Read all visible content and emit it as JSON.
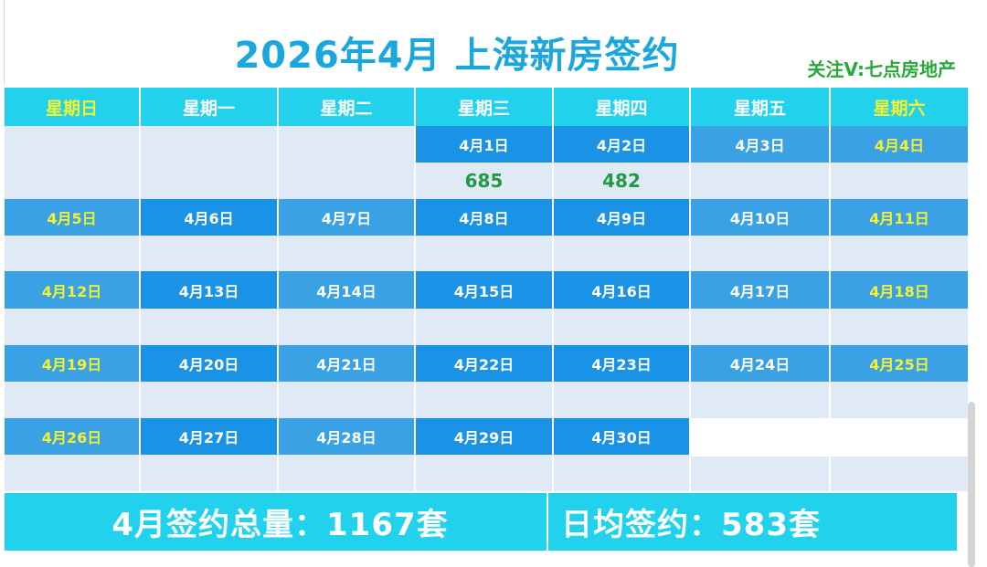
{
  "title": "2026年4月 上海新房签约",
  "watermark": "关注V:七点房地产",
  "weekdays": [
    "星期日",
    "星期一",
    "星期二",
    "星期三",
    "星期四",
    "星期五",
    "星期六"
  ],
  "weeks": [
    {
      "dates": [
        "",
        "",
        "",
        "4月1日",
        "4月2日",
        "4月3日",
        "4月4日"
      ],
      "values": [
        "",
        "",
        "",
        "685",
        "482",
        "",
        ""
      ]
    },
    {
      "dates": [
        "4月5日",
        "4月6日",
        "4月7日",
        "4月8日",
        "4月9日",
        "4月10日",
        "4月11日"
      ],
      "values": [
        "",
        "",
        "",
        "",
        "",
        "",
        ""
      ]
    },
    {
      "dates": [
        "4月12日",
        "4月13日",
        "4月14日",
        "4月15日",
        "4月16日",
        "4月17日",
        "4月18日"
      ],
      "values": [
        "",
        "",
        "",
        "",
        "",
        "",
        ""
      ]
    },
    {
      "dates": [
        "4月19日",
        "4月20日",
        "4月21日",
        "4月22日",
        "4月23日",
        "4月24日",
        "4月25日"
      ],
      "values": [
        "",
        "",
        "",
        "",
        "",
        "",
        ""
      ]
    },
    {
      "dates": [
        "4月26日",
        "4月27日",
        "4月28日",
        "4月29日",
        "4月30日",
        "",
        ""
      ],
      "values": [
        "",
        "",
        "",
        "",
        "",
        "",
        ""
      ]
    }
  ],
  "footer": {
    "total": "4月签约总量：1167套",
    "daily_average": "日均签约：583套"
  },
  "colors": {
    "title": "#1aa7dd",
    "header": "#22d2ec",
    "date_cell": "#3aa2e4",
    "value_cell": "#dfeaf6",
    "value_text": "#1f9c43",
    "weekend_text": "#f5f12e",
    "watermark": "#27a83a"
  }
}
